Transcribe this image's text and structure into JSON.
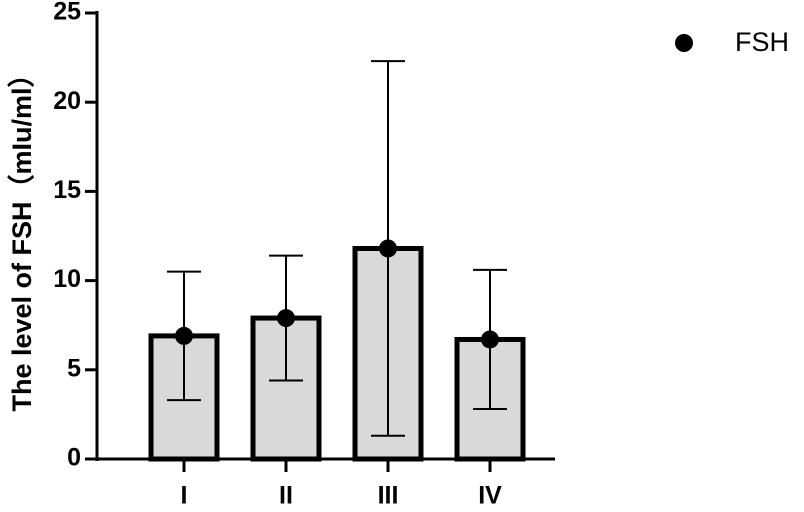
{
  "chart_data": {
    "type": "bar",
    "ylabel": "The level of FSH（mIu/ml）",
    "categories": [
      "I",
      "II",
      "III",
      "IV"
    ],
    "series": [
      {
        "name": "FSH",
        "color": "#000000",
        "bar_fill": "#d9d9d9",
        "values": [
          6.9,
          7.9,
          11.8,
          6.7
        ],
        "errors": [
          3.6,
          3.5,
          10.5,
          3.9
        ]
      }
    ],
    "ylim": [
      0,
      25
    ],
    "yticks": [
      0,
      5,
      10,
      15,
      20,
      25
    ],
    "legend": "top-right"
  }
}
